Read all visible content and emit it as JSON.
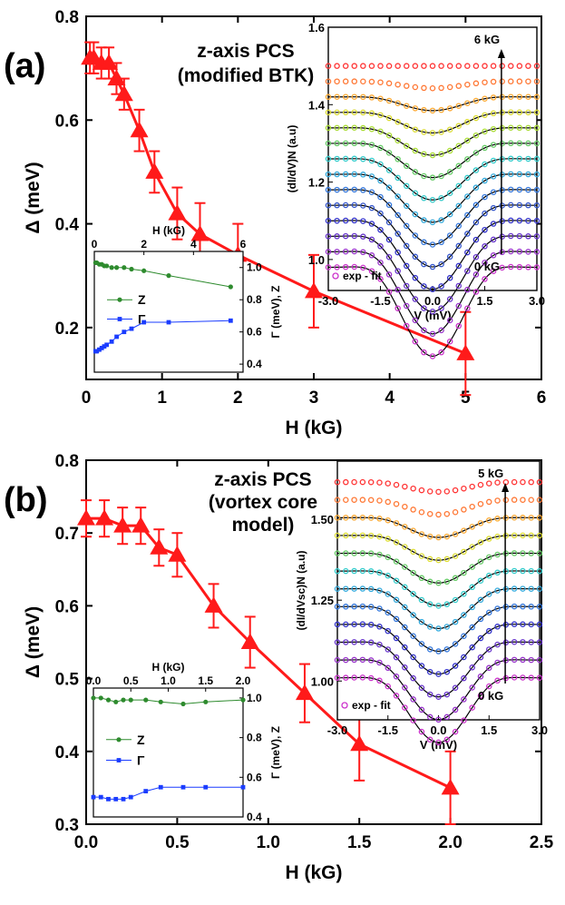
{
  "panels": [
    {
      "label": "(a)",
      "annotation": [
        "z-axis PCS",
        "(modified BTK)"
      ],
      "chart_data": {
        "type": "line",
        "xlabel": "H (kG)",
        "ylabel": "Δ (meV)",
        "xlim": [
          0,
          6
        ],
        "ylim": [
          0.1,
          0.8
        ],
        "xticks": [
          "0",
          "1",
          "2",
          "3",
          "4",
          "5",
          "6"
        ],
        "yticks": [
          "0.2",
          "0.4",
          "0.6",
          "0.8"
        ],
        "color": "#ff1a1a",
        "series": [
          {
            "name": "Δ",
            "x": [
              0.05,
              0.1,
              0.2,
              0.3,
              0.4,
              0.5,
              0.7,
              0.9,
              1.2,
              1.5,
              2.0,
              3.0,
              5.0
            ],
            "y": [
              0.72,
              0.72,
              0.71,
              0.71,
              0.68,
              0.65,
              0.58,
              0.5,
              0.42,
              0.38,
              0.34,
              0.27,
              0.15
            ],
            "err": [
              0.03,
              0.03,
              0.03,
              0.03,
              0.03,
              0.03,
              0.04,
              0.04,
              0.05,
              0.06,
              0.06,
              0.07,
              0.08
            ]
          }
        ]
      },
      "inset_left": {
        "type": "line",
        "xlabel": "H (kG)",
        "ylabel": "Γ (meV), Z",
        "xlim": [
          0,
          6
        ],
        "ylim": [
          0.35,
          1.1
        ],
        "xticks": [
          "0",
          "2",
          "4",
          "6"
        ],
        "yticks": [
          "0.4",
          "0.6",
          "0.8",
          "1.0"
        ],
        "legend": [
          {
            "name": "Z",
            "color": "#2e8b2e"
          },
          {
            "name": "Γ",
            "color": "#1a3cff"
          }
        ],
        "series": [
          {
            "name": "Z",
            "x": [
              0.05,
              0.1,
              0.2,
              0.3,
              0.4,
              0.5,
              0.7,
              0.9,
              1.2,
              1.5,
              2.0,
              3.0,
              5.5
            ],
            "y": [
              1.03,
              1.03,
              1.02,
              1.02,
              1.01,
              1.01,
              1.0,
              1.0,
              1.0,
              0.99,
              0.98,
              0.95,
              0.88
            ]
          },
          {
            "name": "Γ",
            "x": [
              0.05,
              0.1,
              0.2,
              0.3,
              0.4,
              0.5,
              0.7,
              0.9,
              1.2,
              1.5,
              2.0,
              3.0,
              5.5
            ],
            "y": [
              0.48,
              0.48,
              0.49,
              0.5,
              0.51,
              0.52,
              0.54,
              0.57,
              0.6,
              0.62,
              0.66,
              0.66,
              0.67
            ]
          }
        ]
      },
      "inset_right": {
        "type": "scatter",
        "xlabel": "V (mV)",
        "ylabel": "(dI/dV)N (a.u)",
        "xlim": [
          -3,
          3
        ],
        "ylim": [
          0.92,
          1.6
        ],
        "xticks": [
          "-3.0",
          "-1.5",
          "0.0",
          "1.5",
          "3.0"
        ],
        "yticks": [
          "1.0",
          "1.2",
          "1.4",
          "1.6"
        ],
        "legend": "exp  -  fit",
        "label_top": "6 kG",
        "label_bottom": "0 kG",
        "curve_count": 14,
        "offset": 0.04,
        "base_start": 0.98,
        "dip_start": 0.23,
        "dip_end": 0.0,
        "colors": [
          "#cc33cc",
          "#9933cc",
          "#6633cc",
          "#3333cc",
          "#3355cc",
          "#3377dd",
          "#33aadd",
          "#33cccc",
          "#66cc66",
          "#aadd33",
          "#dddd33",
          "#ffaa33",
          "#ff7733",
          "#ff3333"
        ]
      }
    },
    {
      "label": "(b)",
      "annotation": [
        "z-axis PCS",
        "(vortex core",
        "model)"
      ],
      "chart_data": {
        "type": "line",
        "xlabel": "H (kG)",
        "ylabel": "Δ (meV)",
        "xlim": [
          0,
          2.5
        ],
        "ylim": [
          0.3,
          0.8
        ],
        "xticks": [
          "0.0",
          "0.5",
          "1.0",
          "1.5",
          "2.0",
          "2.5"
        ],
        "yticks": [
          "0.3",
          "0.4",
          "0.5",
          "0.6",
          "0.7",
          "0.8"
        ],
        "color": "#ff1a1a",
        "series": [
          {
            "name": "Δ",
            "x": [
              0.0,
              0.1,
              0.2,
              0.3,
              0.4,
              0.5,
              0.7,
              0.9,
              1.2,
              1.5,
              2.0
            ],
            "y": [
              0.72,
              0.72,
              0.71,
              0.71,
              0.68,
              0.67,
              0.6,
              0.55,
              0.48,
              0.41,
              0.35
            ],
            "err": [
              0.025,
              0.025,
              0.025,
              0.025,
              0.025,
              0.03,
              0.03,
              0.035,
              0.04,
              0.05,
              0.05
            ]
          }
        ]
      },
      "inset_left": {
        "type": "line",
        "xlabel": "H (kG)",
        "ylabel": "Γ (meV), Z",
        "xlim": [
          0,
          2.0
        ],
        "ylim": [
          0.4,
          1.05
        ],
        "xticks": [
          "0.0",
          "0.5",
          "1.0",
          "1.5",
          "2.0"
        ],
        "yticks": [
          "0.4",
          "0.6",
          "0.8",
          "1.0"
        ],
        "legend": [
          {
            "name": "Z",
            "color": "#2e8b2e"
          },
          {
            "name": "Γ",
            "color": "#1a3cff"
          }
        ],
        "series": [
          {
            "name": "Z",
            "x": [
              0.0,
              0.1,
              0.2,
              0.3,
              0.4,
              0.5,
              0.7,
              0.9,
              1.2,
              1.5,
              2.0
            ],
            "y": [
              1.0,
              1.0,
              0.99,
              0.98,
              0.99,
              0.99,
              0.99,
              0.98,
              0.97,
              0.98,
              0.99
            ]
          },
          {
            "name": "Γ",
            "x": [
              0.0,
              0.1,
              0.2,
              0.3,
              0.4,
              0.5,
              0.7,
              0.9,
              1.2,
              1.5,
              2.0
            ],
            "y": [
              0.5,
              0.5,
              0.49,
              0.49,
              0.49,
              0.5,
              0.53,
              0.55,
              0.55,
              0.55,
              0.55
            ]
          }
        ]
      },
      "inset_right": {
        "type": "scatter",
        "xlabel": "V (mV)",
        "ylabel": "(dI/dVsc)N (a.u)",
        "xlim": [
          -3,
          3
        ],
        "ylim": [
          0.88,
          1.68
        ],
        "xticks": [
          "-3.0",
          "-1.5",
          "0.0",
          "1.5",
          "3.0"
        ],
        "yticks": [
          "1.00",
          "1.25",
          "1.50"
        ],
        "legend": "exp  -  fit",
        "label_top": "5 kG",
        "label_bottom": "0 kG",
        "curve_count": 12,
        "offset": 0.055,
        "base_start": 1.01,
        "dip_start": 0.2,
        "dip_end": 0.03,
        "colors": [
          "#cc33cc",
          "#9933cc",
          "#6633cc",
          "#3333cc",
          "#3377dd",
          "#33aadd",
          "#33cccc",
          "#66cc66",
          "#dddd33",
          "#ffaa33",
          "#ff7733",
          "#ff3333"
        ]
      }
    }
  ]
}
